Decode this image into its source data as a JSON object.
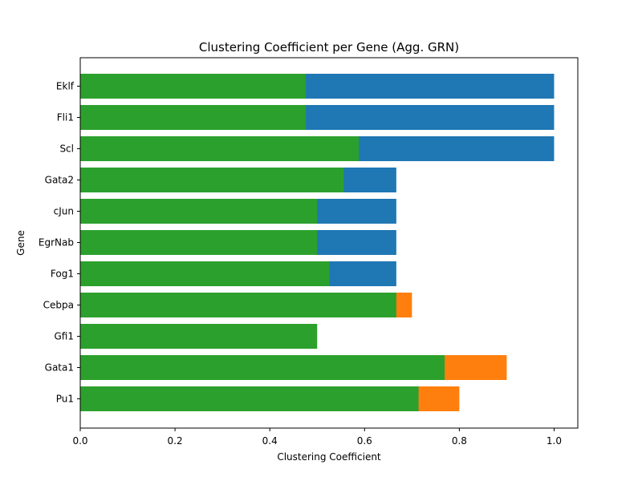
{
  "chart_data": {
    "type": "bar",
    "orientation": "horizontal",
    "title": "Clustering Coefficient per Gene (Agg. GRN)",
    "xlabel": "Clustering Coefficient",
    "ylabel": "Gene",
    "xlim": [
      0,
      1.05
    ],
    "xticks": [
      0.0,
      0.2,
      0.4,
      0.6,
      0.8,
      1.0
    ],
    "xtick_labels": [
      "0.0",
      "0.2",
      "0.4",
      "0.6",
      "0.8",
      "1.0"
    ],
    "grid": false,
    "legend": "none",
    "categories": [
      "Pu1",
      "Gata1",
      "Gfi1",
      "Cebpa",
      "Fog1",
      "EgrNab",
      "cJun",
      "Gata2",
      "Scl",
      "Fli1",
      "Eklf"
    ],
    "series": [
      {
        "color": "#1f77b4",
        "values": [
          null,
          null,
          null,
          null,
          0.667,
          0.667,
          0.667,
          0.667,
          1.0,
          1.0,
          1.0
        ]
      },
      {
        "color": "#ff7f0e",
        "values": [
          0.8,
          0.9,
          null,
          0.7,
          null,
          null,
          null,
          null,
          null,
          null,
          null
        ]
      },
      {
        "color": "#2ca02c",
        "values": [
          0.714,
          0.769,
          0.5,
          0.667,
          0.526,
          0.5,
          0.5,
          0.556,
          0.588,
          0.476,
          0.476
        ]
      }
    ]
  }
}
